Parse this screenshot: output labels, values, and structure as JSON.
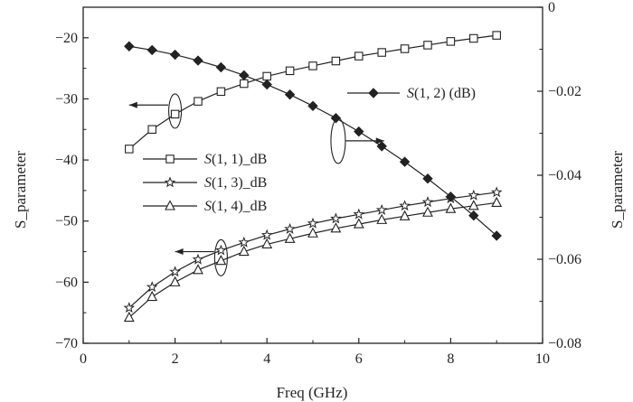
{
  "chart_data": {
    "type": "line",
    "xlabel": "Freq (GHz)",
    "ylabel_left": "S_parameter",
    "ylabel_right": "S_parameter",
    "xlim": [
      0,
      10
    ],
    "ylim_left": [
      -70,
      -15
    ],
    "ylim_right": [
      -0.08,
      0
    ],
    "x_ticks": [
      0,
      2,
      4,
      6,
      8,
      10
    ],
    "y_ticks_left": [
      -70,
      -60,
      -50,
      -40,
      -30,
      -20
    ],
    "y_ticks_right": [
      -0.08,
      -0.06,
      -0.04,
      -0.02,
      0
    ],
    "y_tick_labels_left": [
      "−70",
      "−60",
      "−50",
      "−40",
      "−30",
      "−20"
    ],
    "y_tick_labels_right": [
      "−0.08",
      "−0.06",
      "−0.04",
      "−0.02",
      "0"
    ],
    "grid": false,
    "x": [
      1,
      1.5,
      2,
      2.5,
      3,
      3.5,
      4,
      4.5,
      5,
      5.5,
      6,
      6.5,
      7,
      7.5,
      8,
      8.5,
      9
    ],
    "series": [
      {
        "name": "S(1, 1)_dB",
        "label_func": "S",
        "label_args": "(1, 1)_dB",
        "axis": "left",
        "marker": "square",
        "values": [
          -38.2,
          -35.0,
          -32.5,
          -30.4,
          -28.8,
          -27.5,
          -26.3,
          -25.4,
          -24.6,
          -23.8,
          -23.0,
          -22.4,
          -21.8,
          -21.2,
          -20.6,
          -20.1,
          -19.6
        ]
      },
      {
        "name": "S(1, 3)_dB",
        "label_func": "S",
        "label_args": "(1, 3)_dB",
        "axis": "left",
        "marker": "star",
        "values": [
          -64.2,
          -60.8,
          -58.3,
          -56.3,
          -54.8,
          -53.5,
          -52.3,
          -51.3,
          -50.4,
          -49.6,
          -48.9,
          -48.2,
          -47.5,
          -46.9,
          -46.3,
          -45.8,
          -45.3
        ]
      },
      {
        "name": "S(1, 4)_dB",
        "label_func": "S",
        "label_args": "(1, 4)_dB",
        "axis": "left",
        "marker": "triangle",
        "values": [
          -65.8,
          -62.4,
          -60.0,
          -58.0,
          -56.5,
          -55.0,
          -53.8,
          -52.9,
          -52.0,
          -51.2,
          -50.5,
          -49.8,
          -49.2,
          -48.6,
          -48.0,
          -47.5,
          -47.0
        ]
      },
      {
        "name": "S(1, 2) (dB)",
        "label_func": "S",
        "label_args": "(1, 2) (dB)",
        "axis": "right",
        "marker": "diamond",
        "values": [
          -0.0093,
          -0.0102,
          -0.0113,
          -0.0127,
          -0.0143,
          -0.0162,
          -0.0184,
          -0.0208,
          -0.0235,
          -0.0264,
          -0.0296,
          -0.0331,
          -0.0368,
          -0.0408,
          -0.0451,
          -0.0496,
          -0.0544
        ]
      }
    ],
    "legend": "upper-left",
    "annotations": [
      "left-axis arrows for S(1,1), S(1,3), S(1,4)",
      "right-axis arrow for S(1,2)"
    ]
  }
}
